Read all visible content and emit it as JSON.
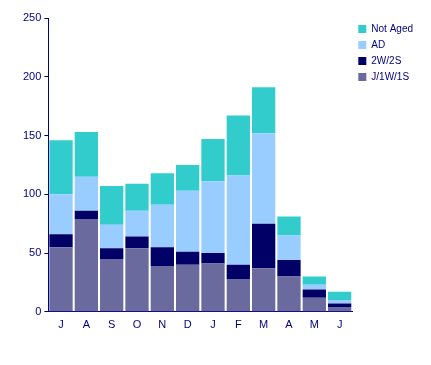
{
  "chart_data": {
    "type": "bar",
    "stacked": true,
    "grid": false,
    "legend": "top right",
    "categories": [
      "J",
      "A",
      "S",
      "O",
      "N",
      "D",
      "J",
      "F",
      "M",
      "A",
      "M",
      "J"
    ],
    "series": [
      {
        "name": "J/1W/1S",
        "color": "#6a6a9e",
        "values": [
          55,
          79,
          45,
          54,
          39,
          40,
          41,
          28,
          37,
          30,
          12,
          4
        ]
      },
      {
        "name": "2W/2S",
        "color": "#000066",
        "values": [
          11,
          7,
          9,
          10,
          16,
          11,
          9,
          12,
          38,
          14,
          7,
          3
        ]
      },
      {
        "name": "AD",
        "color": "#99ccff",
        "values": [
          34,
          29,
          20,
          22,
          36,
          52,
          61,
          76,
          77,
          21,
          4,
          3
        ]
      },
      {
        "name": "Not Aged",
        "color": "#33cccc",
        "values": [
          46,
          38,
          33,
          23,
          27,
          22,
          36,
          51,
          39,
          16,
          7,
          7
        ]
      }
    ],
    "ylim": [
      0,
      250
    ],
    "yticks": [
      0,
      50,
      100,
      150,
      200,
      250
    ]
  }
}
